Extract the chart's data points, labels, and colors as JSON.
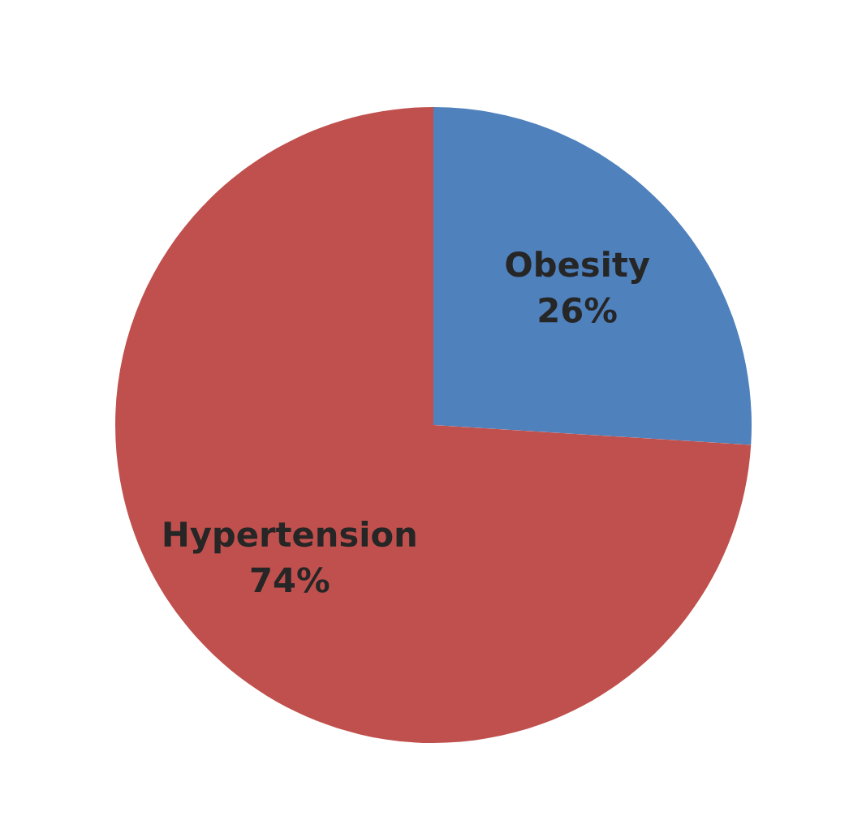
{
  "chart_data": {
    "type": "pie",
    "categories": [
      "Obesity",
      "Hypertension"
    ],
    "values": [
      26,
      74
    ],
    "value_labels": [
      "26%",
      "74%"
    ],
    "colors": [
      "#4f81bd",
      "#c0504d"
    ]
  }
}
